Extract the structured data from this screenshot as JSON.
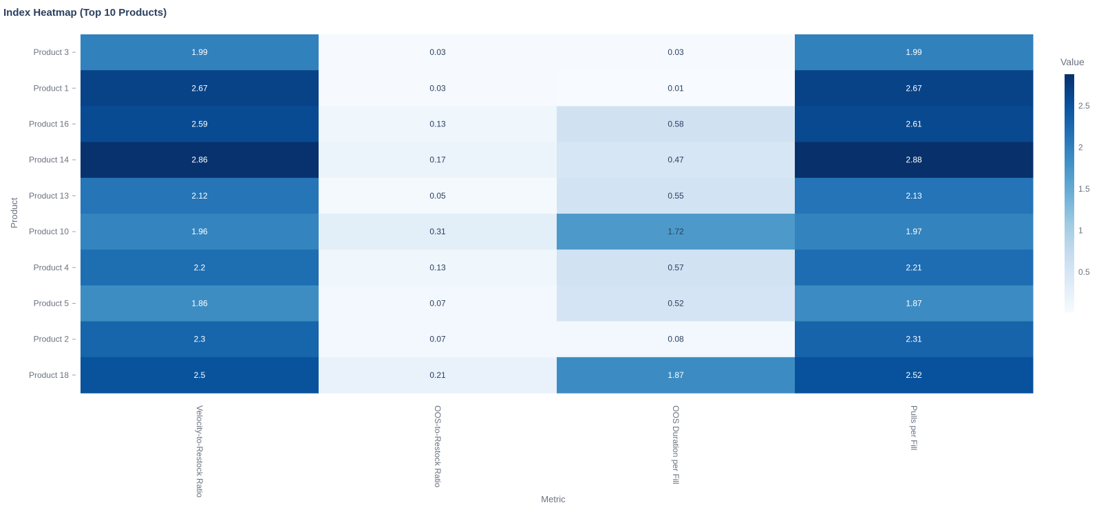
{
  "chart_data": {
    "type": "heatmap",
    "title": "Index Heatmap (Top 10 Products)",
    "xlabel": "Metric",
    "ylabel": "Product",
    "x": [
      "Velocity-to-Restock Ratio",
      "OOS-to-Restock Ratio",
      "OOS Duration per Fill",
      "Pulls per Fill"
    ],
    "y": [
      "Product 3",
      "Product 1",
      "Product 16",
      "Product 14",
      "Product 13",
      "Product 10",
      "Product 4",
      "Product 5",
      "Product 2",
      "Product 18"
    ],
    "z": [
      [
        1.99,
        0.03,
        0.03,
        1.99
      ],
      [
        2.67,
        0.03,
        0.01,
        2.67
      ],
      [
        2.59,
        0.13,
        0.58,
        2.61
      ],
      [
        2.86,
        0.17,
        0.47,
        2.88
      ],
      [
        2.12,
        0.05,
        0.55,
        2.13
      ],
      [
        1.96,
        0.31,
        1.72,
        1.97
      ],
      [
        2.2,
        0.13,
        0.57,
        2.21
      ],
      [
        1.86,
        0.07,
        0.52,
        1.87
      ],
      [
        2.3,
        0.07,
        0.08,
        2.31
      ],
      [
        2.5,
        0.21,
        1.87,
        2.52
      ]
    ],
    "colorscale": "Blues",
    "zmin": 0.01,
    "zmax": 2.88,
    "colorbar": {
      "title": "Value",
      "tickvals": [
        0.5,
        1,
        1.5,
        2,
        2.5
      ],
      "ticktext": [
        "0.5",
        "1",
        "1.5",
        "2",
        "2.5"
      ]
    },
    "legend_position": "right"
  }
}
